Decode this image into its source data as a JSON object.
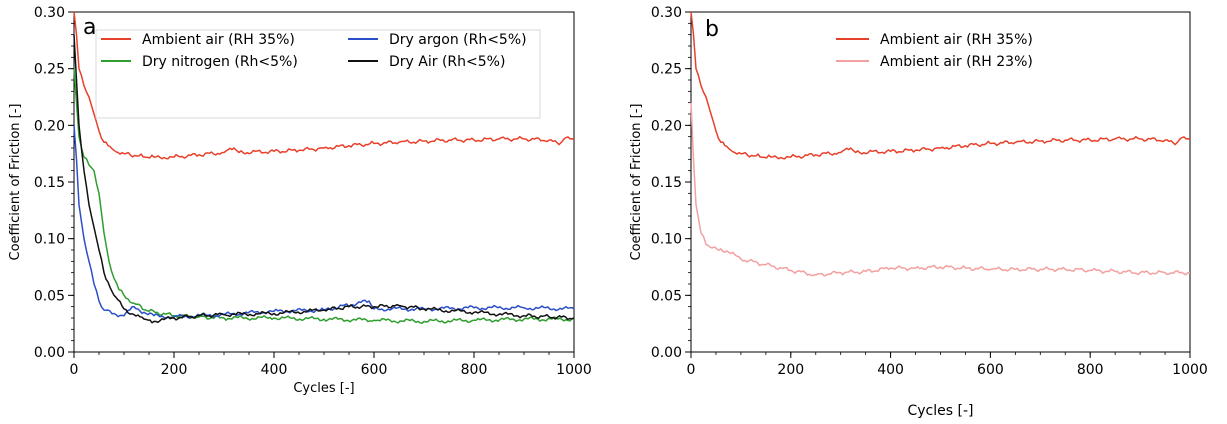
{
  "chart_data": [
    {
      "type": "line",
      "panel_label": "a",
      "xlabel": "Cycles [-]",
      "ylabel": "Coefficient of Friction [-]",
      "xlim": [
        0,
        1000
      ],
      "ylim": [
        0,
        0.3
      ],
      "x_ticks": [
        "0",
        "200",
        "400",
        "600",
        "800",
        "1000"
      ],
      "y_ticks": [
        "0.00",
        "0.05",
        "0.10",
        "0.15",
        "0.20",
        "0.25",
        "0.30"
      ],
      "legend_placement": "top",
      "grid": false,
      "series": [
        {
          "name": "Ambient air (RH 35%)",
          "color": "#e8402a",
          "points": [
            [
              0,
              0.3
            ],
            [
              5,
              0.28
            ],
            [
              10,
              0.25
            ],
            [
              20,
              0.235
            ],
            [
              30,
              0.225
            ],
            [
              40,
              0.21
            ],
            [
              50,
              0.195
            ],
            [
              60,
              0.185
            ],
            [
              80,
              0.178
            ],
            [
              100,
              0.175
            ],
            [
              130,
              0.173
            ],
            [
              160,
              0.172
            ],
            [
              200,
              0.172
            ],
            [
              250,
              0.174
            ],
            [
              300,
              0.176
            ],
            [
              320,
              0.18
            ],
            [
              330,
              0.176
            ],
            [
              400,
              0.177
            ],
            [
              450,
              0.178
            ],
            [
              500,
              0.18
            ],
            [
              550,
              0.182
            ],
            [
              600,
              0.184
            ],
            [
              650,
              0.185
            ],
            [
              700,
              0.186
            ],
            [
              750,
              0.187
            ],
            [
              800,
              0.187
            ],
            [
              850,
              0.188
            ],
            [
              900,
              0.188
            ],
            [
              950,
              0.187
            ],
            [
              970,
              0.183
            ],
            [
              980,
              0.188
            ],
            [
              1000,
              0.188
            ]
          ]
        },
        {
          "name": "Dry nitrogen (Rh<5%)",
          "color": "#2e9e2e",
          "points": [
            [
              0,
              0.25
            ],
            [
              5,
              0.22
            ],
            [
              10,
              0.19
            ],
            [
              15,
              0.18
            ],
            [
              20,
              0.172
            ],
            [
              30,
              0.165
            ],
            [
              40,
              0.16
            ],
            [
              50,
              0.14
            ],
            [
              60,
              0.105
            ],
            [
              70,
              0.08
            ],
            [
              80,
              0.065
            ],
            [
              90,
              0.055
            ],
            [
              100,
              0.05
            ],
            [
              120,
              0.043
            ],
            [
              150,
              0.036
            ],
            [
              200,
              0.032
            ],
            [
              250,
              0.031
            ],
            [
              300,
              0.03
            ],
            [
              400,
              0.03
            ],
            [
              500,
              0.029
            ],
            [
              600,
              0.028
            ],
            [
              700,
              0.027
            ],
            [
              800,
              0.028
            ],
            [
              900,
              0.029
            ],
            [
              1000,
              0.029
            ]
          ]
        },
        {
          "name": "Dry argon (Rh<5%)",
          "color": "#2a4fc8",
          "points": [
            [
              0,
              0.2
            ],
            [
              5,
              0.17
            ],
            [
              10,
              0.13
            ],
            [
              20,
              0.1
            ],
            [
              30,
              0.08
            ],
            [
              40,
              0.06
            ],
            [
              50,
              0.045
            ],
            [
              60,
              0.037
            ],
            [
              80,
              0.034
            ],
            [
              100,
              0.032
            ],
            [
              120,
              0.04
            ],
            [
              140,
              0.035
            ],
            [
              160,
              0.032
            ],
            [
              200,
              0.031
            ],
            [
              300,
              0.033
            ],
            [
              400,
              0.036
            ],
            [
              500,
              0.037
            ],
            [
              590,
              0.045
            ],
            [
              600,
              0.038
            ],
            [
              700,
              0.038
            ],
            [
              800,
              0.039
            ],
            [
              900,
              0.039
            ],
            [
              1000,
              0.038
            ]
          ]
        },
        {
          "name": "Dry Air (Rh<5%)",
          "color": "#111111",
          "points": [
            [
              0,
              0.28
            ],
            [
              5,
              0.24
            ],
            [
              10,
              0.2
            ],
            [
              20,
              0.16
            ],
            [
              30,
              0.13
            ],
            [
              40,
              0.11
            ],
            [
              50,
              0.09
            ],
            [
              60,
              0.07
            ],
            [
              80,
              0.05
            ],
            [
              100,
              0.038
            ],
            [
              120,
              0.033
            ],
            [
              140,
              0.029
            ],
            [
              160,
              0.027
            ],
            [
              200,
              0.03
            ],
            [
              250,
              0.032
            ],
            [
              300,
              0.033
            ],
            [
              400,
              0.034
            ],
            [
              500,
              0.037
            ],
            [
              550,
              0.04
            ],
            [
              600,
              0.04
            ],
            [
              650,
              0.041
            ],
            [
              700,
              0.038
            ],
            [
              800,
              0.035
            ],
            [
              900,
              0.032
            ],
            [
              950,
              0.031
            ],
            [
              1000,
              0.03
            ]
          ]
        }
      ]
    },
    {
      "type": "line",
      "panel_label": "b",
      "xlabel": "Cycles [-]",
      "ylabel": "Coefficient of Friction [-]",
      "xlim": [
        0,
        1000
      ],
      "ylim": [
        0,
        0.3
      ],
      "x_ticks": [
        "0",
        "200",
        "400",
        "600",
        "800",
        "1000"
      ],
      "y_ticks": [
        "0.00",
        "0.05",
        "0.10",
        "0.15",
        "0.20",
        "0.25",
        "0.30"
      ],
      "legend_placement": "top",
      "grid": false,
      "series": [
        {
          "name": "Ambient air (RH 35%)",
          "color": "#e8402a",
          "points": [
            [
              0,
              0.3
            ],
            [
              5,
              0.28
            ],
            [
              10,
              0.25
            ],
            [
              20,
              0.235
            ],
            [
              30,
              0.225
            ],
            [
              40,
              0.21
            ],
            [
              50,
              0.195
            ],
            [
              60,
              0.185
            ],
            [
              80,
              0.178
            ],
            [
              100,
              0.175
            ],
            [
              130,
              0.173
            ],
            [
              160,
              0.172
            ],
            [
              200,
              0.172
            ],
            [
              250,
              0.174
            ],
            [
              300,
              0.176
            ],
            [
              320,
              0.18
            ],
            [
              330,
              0.176
            ],
            [
              400,
              0.177
            ],
            [
              450,
              0.178
            ],
            [
              500,
              0.18
            ],
            [
              550,
              0.182
            ],
            [
              600,
              0.184
            ],
            [
              650,
              0.185
            ],
            [
              700,
              0.186
            ],
            [
              750,
              0.187
            ],
            [
              800,
              0.187
            ],
            [
              850,
              0.188
            ],
            [
              900,
              0.188
            ],
            [
              950,
              0.187
            ],
            [
              970,
              0.183
            ],
            [
              980,
              0.188
            ],
            [
              1000,
              0.188
            ]
          ]
        },
        {
          "name": "Ambient air (RH 23%)",
          "color": "#f2a0a0",
          "points": [
            [
              0,
              0.22
            ],
            [
              5,
              0.17
            ],
            [
              10,
              0.13
            ],
            [
              20,
              0.105
            ],
            [
              30,
              0.095
            ],
            [
              40,
              0.092
            ],
            [
              60,
              0.091
            ],
            [
              80,
              0.087
            ],
            [
              100,
              0.082
            ],
            [
              150,
              0.077
            ],
            [
              200,
              0.072
            ],
            [
              250,
              0.068
            ],
            [
              300,
              0.07
            ],
            [
              350,
              0.071
            ],
            [
              400,
              0.074
            ],
            [
              450,
              0.074
            ],
            [
              500,
              0.075
            ],
            [
              550,
              0.074
            ],
            [
              600,
              0.073
            ],
            [
              650,
              0.073
            ],
            [
              700,
              0.073
            ],
            [
              750,
              0.073
            ],
            [
              800,
              0.072
            ],
            [
              850,
              0.071
            ],
            [
              900,
              0.07
            ],
            [
              950,
              0.07
            ],
            [
              1000,
              0.07
            ]
          ]
        }
      ]
    }
  ]
}
